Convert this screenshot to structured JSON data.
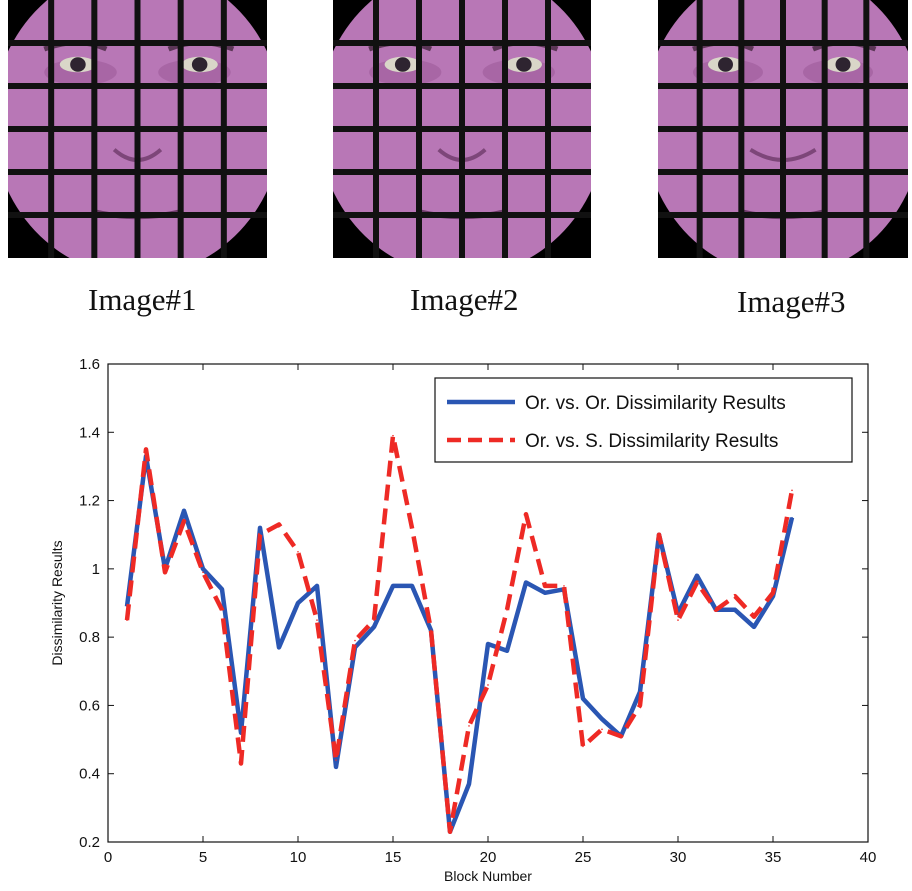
{
  "figure": {
    "faces": [
      {
        "caption": "Image#1"
      },
      {
        "caption": "Image#2"
      },
      {
        "caption": "Image#3"
      }
    ],
    "colors": {
      "grid_lines": "#111111",
      "face_tone": "#b877b6",
      "series_1": "#2a56b3",
      "series_2": "#ee2a25"
    }
  },
  "chart_data": {
    "type": "line",
    "title": "",
    "xlabel": "Block Number",
    "ylabel": "Dissimilarity Results",
    "xlim": [
      0,
      40
    ],
    "ylim": [
      0.2,
      1.6
    ],
    "xticks": [
      0,
      5,
      10,
      15,
      20,
      25,
      30,
      35,
      40
    ],
    "yticks": [
      0.2,
      0.4,
      0.6,
      0.8,
      1,
      1.2,
      1.4,
      1.6
    ],
    "grid": false,
    "legend_position": "top-right",
    "x": [
      1,
      2,
      3,
      4,
      5,
      6,
      7,
      8,
      9,
      10,
      11,
      12,
      13,
      14,
      15,
      16,
      17,
      18,
      19,
      20,
      21,
      22,
      23,
      24,
      25,
      26,
      27,
      28,
      29,
      30,
      31,
      32,
      33,
      34,
      35,
      36
    ],
    "series": [
      {
        "name": "Or. vs. Or. Dissimilarity Results",
        "color": "#2a56b3",
        "style": "solid",
        "values": [
          0.89,
          1.33,
          1.0,
          1.17,
          1.0,
          0.94,
          0.52,
          1.12,
          0.77,
          0.9,
          0.95,
          0.42,
          0.77,
          0.83,
          0.95,
          0.95,
          0.82,
          0.23,
          0.37,
          0.78,
          0.76,
          0.96,
          0.93,
          0.94,
          0.62,
          0.56,
          0.51,
          0.64,
          1.1,
          0.87,
          0.98,
          0.88,
          0.88,
          0.83,
          0.92,
          1.15
        ]
      },
      {
        "name": "Or. vs. S. Dissimilarity Results",
        "color": "#ee2a25",
        "style": "dashed",
        "values": [
          0.85,
          1.35,
          0.99,
          1.14,
          0.99,
          0.88,
          0.43,
          1.1,
          1.13,
          1.05,
          0.85,
          0.44,
          0.79,
          0.85,
          1.39,
          1.12,
          0.82,
          0.23,
          0.54,
          0.66,
          0.88,
          1.16,
          0.95,
          0.95,
          0.48,
          0.53,
          0.51,
          0.6,
          1.1,
          0.85,
          0.96,
          0.88,
          0.92,
          0.86,
          0.93,
          1.23
        ]
      }
    ]
  }
}
